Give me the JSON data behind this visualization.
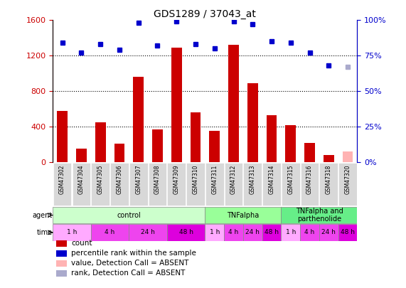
{
  "title": "GDS1289 / 37043_at",
  "samples": [
    "GSM47302",
    "GSM47304",
    "GSM47305",
    "GSM47306",
    "GSM47307",
    "GSM47308",
    "GSM47309",
    "GSM47310",
    "GSM47311",
    "GSM47312",
    "GSM47313",
    "GSM47314",
    "GSM47315",
    "GSM47316",
    "GSM47318",
    "GSM47320"
  ],
  "counts": [
    580,
    155,
    450,
    210,
    960,
    370,
    1290,
    560,
    350,
    1320,
    890,
    530,
    420,
    215,
    80,
    120
  ],
  "count_absent": [
    false,
    false,
    false,
    false,
    false,
    false,
    false,
    false,
    false,
    false,
    false,
    false,
    false,
    false,
    false,
    true
  ],
  "percentile_ranks": [
    84,
    77,
    83,
    79,
    98,
    82,
    99,
    83,
    80,
    99,
    97,
    85,
    84,
    77,
    68,
    67
  ],
  "rank_absent": [
    false,
    false,
    false,
    false,
    false,
    false,
    false,
    false,
    false,
    false,
    false,
    false,
    false,
    false,
    false,
    true
  ],
  "ylim_left": [
    0,
    1600
  ],
  "ylim_right": [
    0,
    100
  ],
  "yticks_left": [
    0,
    400,
    800,
    1200,
    1600
  ],
  "yticks_right": [
    0,
    25,
    50,
    75,
    100
  ],
  "bar_color": "#cc0000",
  "bar_absent_color": "#ffb3b3",
  "dot_color": "#0000cc",
  "dot_absent_color": "#aaaacc",
  "agent_groups": [
    {
      "label": "control",
      "start": 0,
      "end": 8,
      "color": "#ccffcc"
    },
    {
      "label": "TNFalpha",
      "start": 8,
      "end": 12,
      "color": "#99ff99"
    },
    {
      "label": "TNFalpha and\nparthenolide",
      "start": 12,
      "end": 16,
      "color": "#66ee88"
    }
  ],
  "time_colors": {
    "1 h": "#ffaaff",
    "4 h": "#ee44ee",
    "24 h": "#ee44ee",
    "48 h": "#dd00dd"
  },
  "time_groups": [
    {
      "label": "1 h",
      "start": 0,
      "end": 2
    },
    {
      "label": "4 h",
      "start": 2,
      "end": 4
    },
    {
      "label": "24 h",
      "start": 4,
      "end": 6
    },
    {
      "label": "48 h",
      "start": 6,
      "end": 8
    },
    {
      "label": "1 h",
      "start": 8,
      "end": 9
    },
    {
      "label": "4 h",
      "start": 9,
      "end": 10
    },
    {
      "label": "24 h",
      "start": 10,
      "end": 11
    },
    {
      "label": "48 h",
      "start": 11,
      "end": 12
    },
    {
      "label": "1 h",
      "start": 12,
      "end": 13
    },
    {
      "label": "4 h",
      "start": 13,
      "end": 14
    },
    {
      "label": "24 h",
      "start": 14,
      "end": 15
    },
    {
      "label": "48 h",
      "start": 15,
      "end": 16
    }
  ],
  "legend_items": [
    {
      "label": "count",
      "color": "#cc0000"
    },
    {
      "label": "percentile rank within the sample",
      "color": "#0000cc"
    },
    {
      "label": "value, Detection Call = ABSENT",
      "color": "#ffb3b3"
    },
    {
      "label": "rank, Detection Call = ABSENT",
      "color": "#aaaacc"
    }
  ],
  "sample_bg_color": "#d8d8d8",
  "left_label_color": "#cc0000",
  "right_label_color": "#0000cc"
}
